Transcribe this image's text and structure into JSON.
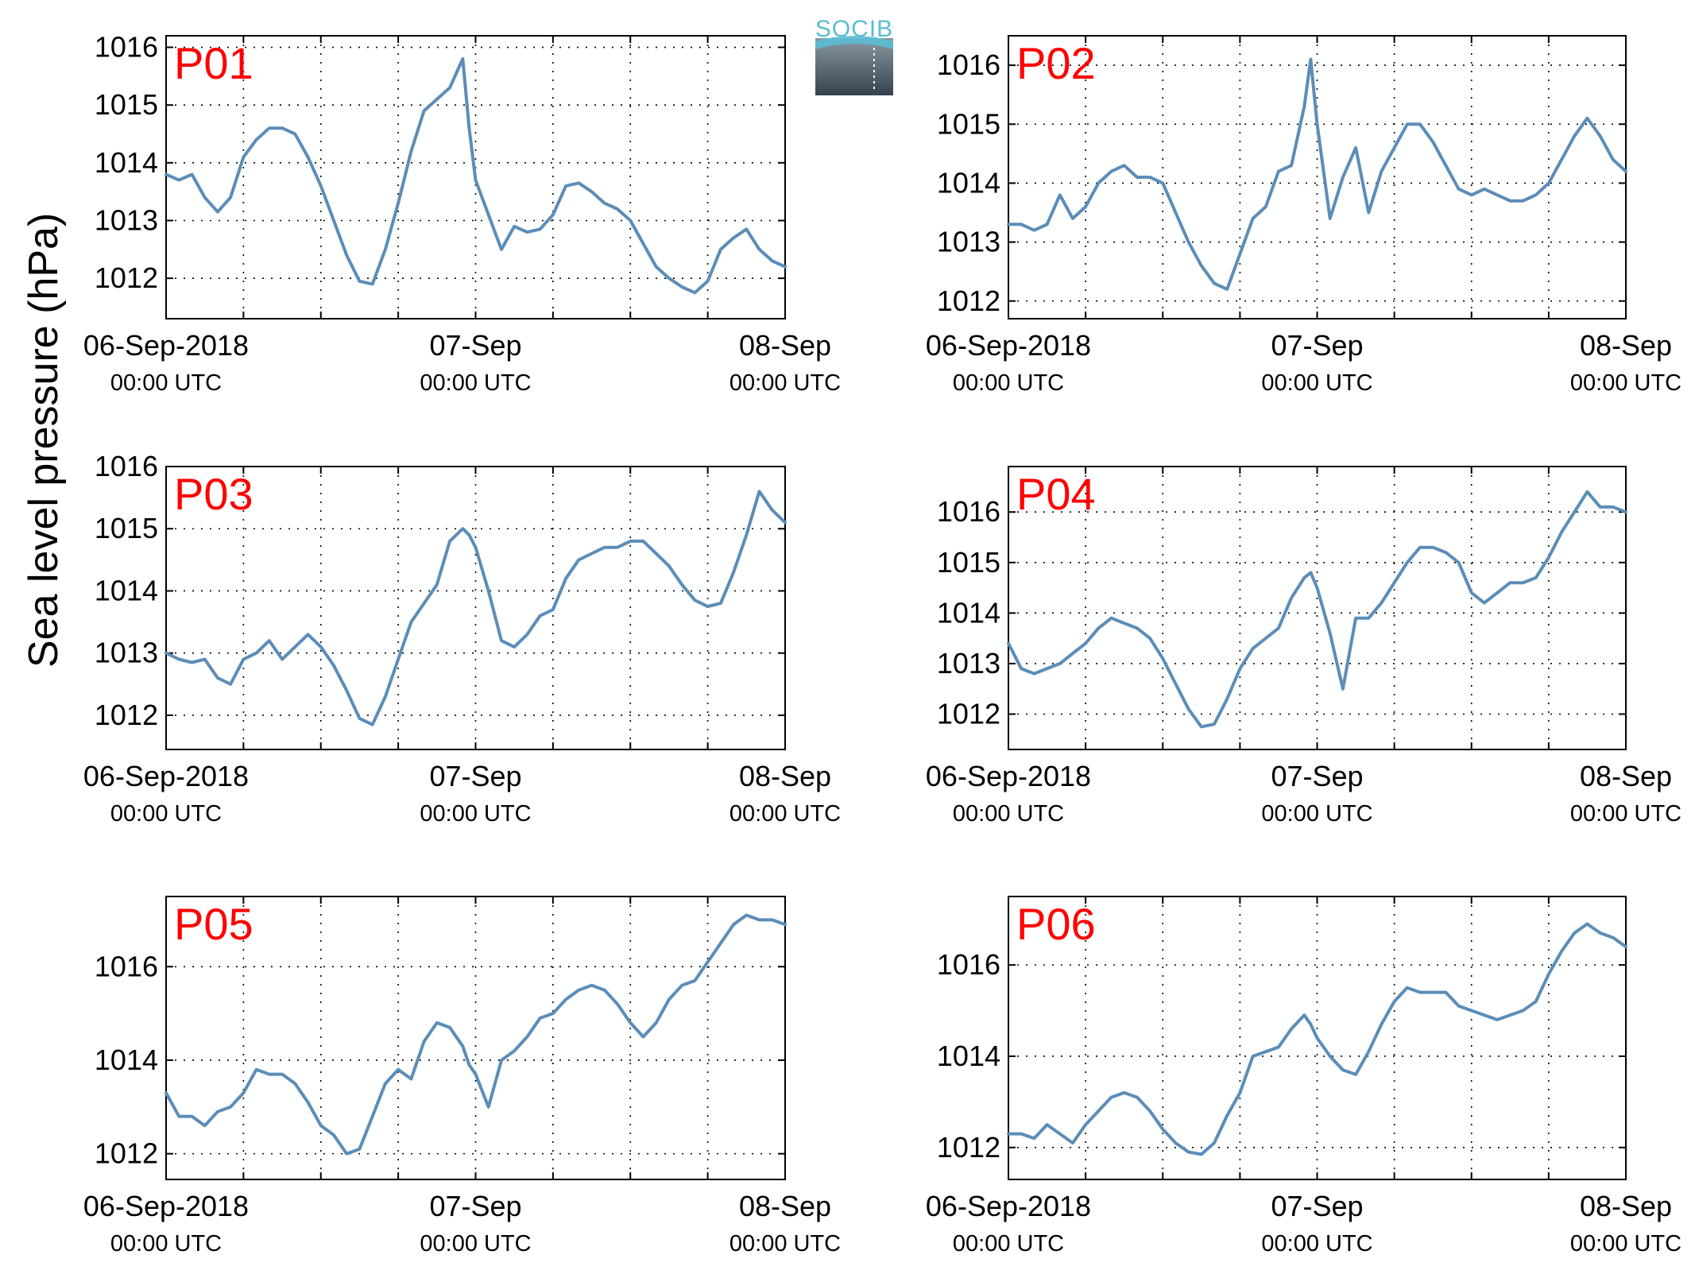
{
  "figure": {
    "ylabel": "Sea level pressure (hPa)",
    "logo_text": "SOCIB",
    "line_color": "#5b8db8",
    "title_color": "#ff0000"
  },
  "chart_data": [
    {
      "type": "line",
      "title": "P01",
      "xlabel": "",
      "ylabel": "Sea level pressure (hPa)",
      "x_tick_labels": [
        {
          "date": "06-Sep-2018",
          "time": "00:00 UTC"
        },
        {
          "date": "07-Sep",
          "time": "00:00 UTC"
        },
        {
          "date": "08-Sep",
          "time": "00:00 UTC"
        }
      ],
      "xlim_hours": [
        0,
        48
      ],
      "ylim": [
        1011.3,
        1016.2
      ],
      "yticks": [
        1012,
        1013,
        1014,
        1015,
        1016
      ],
      "grid": true,
      "series": [
        {
          "x_hours": [
            0,
            1,
            2,
            3,
            4,
            5,
            6,
            7,
            8,
            9,
            10,
            11,
            12,
            13,
            14,
            15,
            16,
            17,
            18,
            19,
            20,
            21,
            22,
            23,
            23.5,
            24,
            25,
            26,
            27,
            28,
            29,
            30,
            31,
            32,
            33,
            34,
            35,
            36,
            37,
            38,
            39,
            40,
            41,
            42,
            43,
            44,
            45,
            46,
            47,
            48
          ],
          "values": [
            1013.8,
            1013.7,
            1013.8,
            1013.4,
            1013.15,
            1013.4,
            1014.1,
            1014.4,
            1014.6,
            1014.6,
            1014.5,
            1014.1,
            1013.6,
            1013.0,
            1012.4,
            1011.95,
            1011.9,
            1012.5,
            1013.3,
            1014.2,
            1014.9,
            1015.1,
            1015.3,
            1015.8,
            1014.6,
            1013.7,
            1013.1,
            1012.5,
            1012.9,
            1012.8,
            1012.85,
            1013.1,
            1013.6,
            1013.65,
            1013.5,
            1013.3,
            1013.2,
            1013.0,
            1012.6,
            1012.2,
            1012.0,
            1011.85,
            1011.75,
            1011.95,
            1012.5,
            1012.7,
            1012.85,
            1012.5,
            1012.3,
            1012.2
          ]
        }
      ]
    },
    {
      "type": "line",
      "title": "P02",
      "xlabel": "",
      "ylabel": "Sea level pressure (hPa)",
      "x_tick_labels": [
        {
          "date": "06-Sep-2018",
          "time": "00:00 UTC"
        },
        {
          "date": "07-Sep",
          "time": "00:00 UTC"
        },
        {
          "date": "08-Sep",
          "time": "00:00 UTC"
        }
      ],
      "xlim_hours": [
        0,
        48
      ],
      "ylim": [
        1011.7,
        1016.5
      ],
      "yticks": [
        1012,
        1013,
        1014,
        1015,
        1016
      ],
      "grid": true,
      "series": [
        {
          "x_hours": [
            0,
            1,
            2,
            3,
            4,
            5,
            6,
            7,
            8,
            9,
            10,
            11,
            12,
            13,
            14,
            15,
            16,
            17,
            18,
            19,
            20,
            21,
            22,
            23,
            23.5,
            24,
            25,
            26,
            27,
            28,
            29,
            30,
            31,
            32,
            33,
            34,
            35,
            36,
            37,
            38,
            39,
            40,
            41,
            42,
            43,
            44,
            45,
            46,
            47,
            48
          ],
          "values": [
            1013.3,
            1013.3,
            1013.2,
            1013.3,
            1013.8,
            1013.4,
            1013.6,
            1014.0,
            1014.2,
            1014.3,
            1014.1,
            1014.1,
            1014.0,
            1013.5,
            1013.0,
            1012.6,
            1012.3,
            1012.2,
            1012.8,
            1013.4,
            1013.6,
            1014.2,
            1014.3,
            1015.3,
            1016.1,
            1015.0,
            1013.4,
            1014.1,
            1014.6,
            1013.5,
            1014.2,
            1014.6,
            1015.0,
            1015.0,
            1014.7,
            1014.3,
            1013.9,
            1013.8,
            1013.9,
            1013.8,
            1013.7,
            1013.7,
            1013.8,
            1014.0,
            1014.4,
            1014.8,
            1015.1,
            1014.8,
            1014.4,
            1014.2
          ]
        }
      ]
    },
    {
      "type": "line",
      "title": "P03",
      "xlabel": "",
      "ylabel": "Sea level pressure (hPa)",
      "x_tick_labels": [
        {
          "date": "06-Sep-2018",
          "time": "00:00 UTC"
        },
        {
          "date": "07-Sep",
          "time": "00:00 UTC"
        },
        {
          "date": "08-Sep",
          "time": "00:00 UTC"
        }
      ],
      "xlim_hours": [
        0,
        48
      ],
      "ylim": [
        1011.45,
        1016.0
      ],
      "yticks": [
        1012,
        1013,
        1014,
        1015,
        1016
      ],
      "grid": true,
      "series": [
        {
          "x_hours": [
            0,
            1,
            2,
            3,
            4,
            5,
            6,
            7,
            8,
            9,
            10,
            11,
            12,
            13,
            14,
            15,
            16,
            17,
            18,
            19,
            20,
            21,
            22,
            23,
            23.5,
            24,
            25,
            26,
            27,
            28,
            29,
            30,
            31,
            32,
            33,
            34,
            35,
            36,
            37,
            38,
            39,
            40,
            41,
            42,
            43,
            44,
            45,
            46,
            47,
            48
          ],
          "values": [
            1013.0,
            1012.9,
            1012.85,
            1012.9,
            1012.6,
            1012.5,
            1012.9,
            1013.0,
            1013.2,
            1012.9,
            1013.1,
            1013.3,
            1013.1,
            1012.8,
            1012.4,
            1011.95,
            1011.85,
            1012.3,
            1012.9,
            1013.5,
            1013.8,
            1014.1,
            1014.8,
            1015.0,
            1014.9,
            1014.7,
            1014.0,
            1013.2,
            1013.1,
            1013.3,
            1013.6,
            1013.7,
            1014.2,
            1014.5,
            1014.6,
            1014.7,
            1014.7,
            1014.8,
            1014.8,
            1014.6,
            1014.4,
            1014.1,
            1013.85,
            1013.75,
            1013.8,
            1014.3,
            1014.9,
            1015.6,
            1015.3,
            1015.1
          ]
        }
      ]
    },
    {
      "type": "line",
      "title": "P04",
      "xlabel": "",
      "ylabel": "Sea level pressure (hPa)",
      "x_tick_labels": [
        {
          "date": "06-Sep-2018",
          "time": "00:00 UTC"
        },
        {
          "date": "07-Sep",
          "time": "00:00 UTC"
        },
        {
          "date": "08-Sep",
          "time": "00:00 UTC"
        }
      ],
      "xlim_hours": [
        0,
        48
      ],
      "ylim": [
        1011.3,
        1016.9
      ],
      "yticks": [
        1012,
        1013,
        1014,
        1015,
        1016
      ],
      "grid": true,
      "series": [
        {
          "x_hours": [
            0,
            1,
            2,
            3,
            4,
            5,
            6,
            7,
            8,
            9,
            10,
            11,
            12,
            13,
            14,
            15,
            16,
            17,
            18,
            19,
            20,
            21,
            22,
            23,
            23.5,
            24,
            25,
            26,
            27,
            28,
            29,
            30,
            31,
            32,
            33,
            34,
            35,
            36,
            37,
            38,
            39,
            40,
            41,
            42,
            43,
            44,
            45,
            46,
            47,
            48
          ],
          "values": [
            1013.4,
            1012.9,
            1012.8,
            1012.9,
            1013.0,
            1013.2,
            1013.4,
            1013.7,
            1013.9,
            1013.8,
            1013.7,
            1013.5,
            1013.1,
            1012.6,
            1012.1,
            1011.75,
            1011.8,
            1012.3,
            1012.9,
            1013.3,
            1013.5,
            1013.7,
            1014.3,
            1014.7,
            1014.8,
            1014.5,
            1013.6,
            1012.5,
            1013.9,
            1013.9,
            1014.2,
            1014.6,
            1015.0,
            1015.3,
            1015.3,
            1015.2,
            1015.0,
            1014.4,
            1014.2,
            1014.4,
            1014.6,
            1014.6,
            1014.7,
            1015.1,
            1015.6,
            1016.0,
            1016.4,
            1016.1,
            1016.1,
            1016.0
          ]
        }
      ]
    },
    {
      "type": "line",
      "title": "P05",
      "xlabel": "",
      "ylabel": "Sea level pressure (hPa)",
      "x_tick_labels": [
        {
          "date": "06-Sep-2018",
          "time": "00:00 UTC"
        },
        {
          "date": "07-Sep",
          "time": "00:00 UTC"
        },
        {
          "date": "08-Sep",
          "time": "00:00 UTC"
        }
      ],
      "xlim_hours": [
        0,
        48
      ],
      "ylim": [
        1011.45,
        1017.5
      ],
      "yticks": [
        1012,
        1014,
        1016
      ],
      "grid": true,
      "series": [
        {
          "x_hours": [
            0,
            1,
            2,
            3,
            4,
            5,
            6,
            7,
            8,
            9,
            10,
            11,
            12,
            13,
            14,
            15,
            16,
            17,
            18,
            19,
            20,
            21,
            22,
            23,
            23.5,
            24,
            25,
            26,
            27,
            28,
            29,
            30,
            31,
            32,
            33,
            34,
            35,
            36,
            37,
            38,
            39,
            40,
            41,
            42,
            43,
            44,
            45,
            46,
            47,
            48
          ],
          "values": [
            1013.3,
            1012.8,
            1012.8,
            1012.6,
            1012.9,
            1013.0,
            1013.3,
            1013.8,
            1013.7,
            1013.7,
            1013.5,
            1013.1,
            1012.6,
            1012.4,
            1012.0,
            1012.1,
            1012.8,
            1013.5,
            1013.8,
            1013.6,
            1014.4,
            1014.8,
            1014.7,
            1014.3,
            1013.9,
            1013.7,
            1013.0,
            1014.0,
            1014.2,
            1014.5,
            1014.9,
            1015.0,
            1015.3,
            1015.5,
            1015.6,
            1015.5,
            1015.2,
            1014.8,
            1014.5,
            1014.8,
            1015.3,
            1015.6,
            1015.7,
            1016.1,
            1016.5,
            1016.9,
            1017.1,
            1017.0,
            1017.0,
            1016.9
          ]
        }
      ]
    },
    {
      "type": "line",
      "title": "P06",
      "xlabel": "",
      "ylabel": "Sea level pressure (hPa)",
      "x_tick_labels": [
        {
          "date": "06-Sep-2018",
          "time": "00:00 UTC"
        },
        {
          "date": "07-Sep",
          "time": "00:00 UTC"
        },
        {
          "date": "08-Sep",
          "time": "00:00 UTC"
        }
      ],
      "xlim_hours": [
        0,
        48
      ],
      "ylim": [
        1011.3,
        1017.5
      ],
      "yticks": [
        1012,
        1014,
        1016
      ],
      "grid": true,
      "series": [
        {
          "x_hours": [
            0,
            1,
            2,
            3,
            4,
            5,
            6,
            7,
            8,
            9,
            10,
            11,
            12,
            13,
            14,
            15,
            16,
            17,
            18,
            19,
            20,
            21,
            22,
            23,
            23.5,
            24,
            25,
            26,
            27,
            28,
            29,
            30,
            31,
            32,
            33,
            34,
            35,
            36,
            37,
            38,
            39,
            40,
            41,
            42,
            43,
            44,
            45,
            46,
            47,
            48
          ],
          "values": [
            1012.3,
            1012.3,
            1012.2,
            1012.5,
            1012.3,
            1012.1,
            1012.5,
            1012.8,
            1013.1,
            1013.2,
            1013.1,
            1012.8,
            1012.4,
            1012.1,
            1011.9,
            1011.85,
            1012.1,
            1012.7,
            1013.2,
            1014.0,
            1014.1,
            1014.2,
            1014.6,
            1014.9,
            1014.7,
            1014.4,
            1014.0,
            1013.7,
            1013.6,
            1014.1,
            1014.7,
            1015.2,
            1015.5,
            1015.4,
            1015.4,
            1015.4,
            1015.1,
            1015.0,
            1014.9,
            1014.8,
            1014.9,
            1015.0,
            1015.2,
            1015.8,
            1016.3,
            1016.7,
            1016.9,
            1016.7,
            1016.6,
            1016.4
          ]
        }
      ]
    }
  ]
}
